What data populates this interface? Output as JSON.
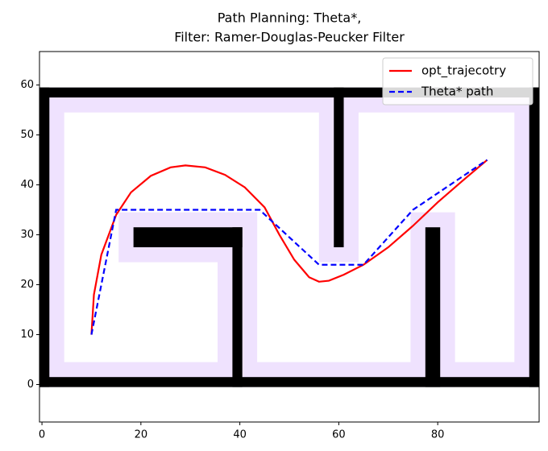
{
  "chart_data": {
    "type": "path_map",
    "title": "Path Planning: Theta*,",
    "subtitle": "Filter: Ramer-Douglas-Peucker Filter",
    "xlim": [
      -0.5,
      100.5
    ],
    "ylim": [
      -7.5,
      66.7
    ],
    "xticks": [
      0,
      20,
      40,
      60,
      80
    ],
    "yticks": [
      0,
      10,
      20,
      30,
      40,
      50,
      60
    ],
    "legend": "upper right",
    "obstacle_color": "#000000",
    "inflated_color": "#efe2fe",
    "inflated_obstacles": [
      [
        -0.5,
        -0.5,
        100.5,
        4.5
      ],
      [
        -0.5,
        54.5,
        100.5,
        59.5
      ],
      [
        -0.5,
        -0.5,
        4.5,
        59.5
      ],
      [
        95.5,
        -0.5,
        100.5,
        59.5
      ],
      [
        56,
        24.5,
        64,
        59.5
      ],
      [
        15.5,
        24.5,
        43.5,
        34.5
      ],
      [
        35.5,
        -0.5,
        43.5,
        34.5
      ],
      [
        74.5,
        -0.5,
        83.5,
        34.5
      ]
    ],
    "obstacles": [
      [
        -0.5,
        -0.5,
        100.5,
        1.5
      ],
      [
        -0.5,
        57.5,
        100.5,
        59.5
      ],
      [
        -0.5,
        -0.5,
        1.5,
        59.5
      ],
      [
        98.5,
        -0.5,
        100.5,
        59.5
      ],
      [
        59,
        27.5,
        61,
        59.5
      ],
      [
        18.5,
        27.5,
        40.5,
        31.5
      ],
      [
        38.5,
        -0.5,
        40.5,
        31.5
      ],
      [
        77.5,
        -0.5,
        80.5,
        31.5
      ]
    ],
    "series": [
      {
        "name": "opt_trajecotry",
        "color": "#ff0000",
        "dash": false,
        "x": [
          10,
          10.5,
          12,
          15,
          18,
          22,
          26,
          29,
          33,
          37,
          41,
          45,
          48,
          51,
          54,
          56,
          58,
          61,
          65,
          70,
          75,
          80,
          85,
          90
        ],
        "values": [
          10,
          18,
          26,
          34,
          38.5,
          41.8,
          43.5,
          43.9,
          43.5,
          42,
          39.5,
          35.5,
          30,
          25,
          21.5,
          20.6,
          20.8,
          22,
          24,
          27.5,
          31.8,
          36.5,
          40.8,
          45
        ]
      },
      {
        "name": "Theta* path",
        "color": "#0000ff",
        "dash": true,
        "x": [
          10,
          15,
          44,
          56,
          65,
          75,
          90
        ],
        "values": [
          10,
          35,
          35,
          24,
          24,
          35,
          45
        ]
      }
    ]
  }
}
